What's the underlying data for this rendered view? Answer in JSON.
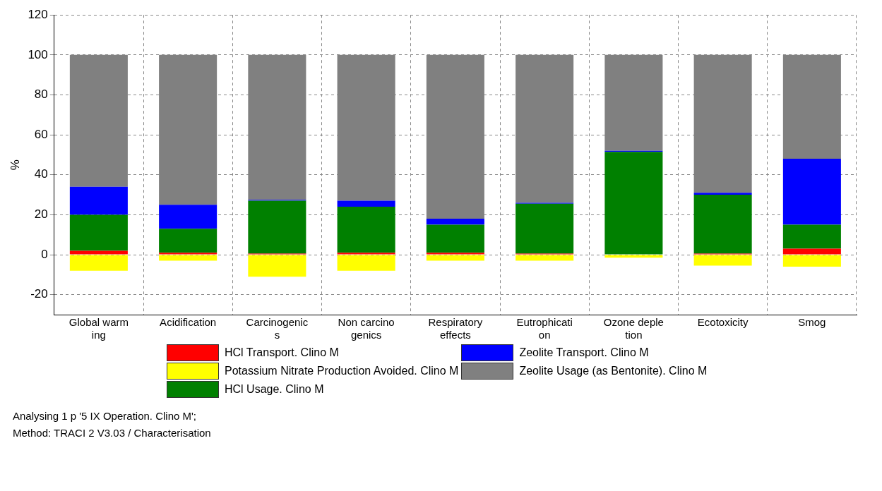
{
  "chart_data": {
    "type": "bar",
    "stacked": true,
    "ylabel": "%",
    "ylim": [
      -30,
      120
    ],
    "yticks": [
      -20,
      0,
      20,
      40,
      60,
      80,
      100,
      120
    ],
    "grid": true,
    "legend": "bottom",
    "categories": [
      "Global warm\ning",
      "Acidification",
      "Carcinogenic\ns",
      "Non carcino\ngenics",
      "Respiratory\neffects",
      "Eutrophicati\non",
      "Ozone deple\ntion",
      "Ecotoxicity",
      "Smog"
    ],
    "series": [
      {
        "name": "HCl Transport. Clino M",
        "color": "#ff0000",
        "values": [
          2,
          1,
          0.5,
          1,
          1,
          0.5,
          null,
          0.5,
          3
        ]
      },
      {
        "name": "Potassium Nitrate Production Avoided. Clino M",
        "color": "#ffff00",
        "values": [
          -8,
          -3,
          -11,
          -8,
          -3,
          -3,
          -1.5,
          -5.5,
          -6
        ]
      },
      {
        "name": "HCl Usage. Clino M",
        "color": "#008000",
        "values": [
          18,
          12,
          26.5,
          23,
          14,
          25,
          51.5,
          29.5,
          12
        ]
      },
      {
        "name": "Zeolite Transport. Clino M",
        "color": "#0000ff",
        "values": [
          14,
          12,
          0.5,
          3,
          3,
          0.5,
          0.5,
          1,
          33
        ]
      },
      {
        "name": "Zeolite Usage (as Bentonite). Clino M",
        "color": "#808080",
        "values": [
          66,
          75,
          72.5,
          73,
          82,
          74,
          48,
          69,
          52
        ]
      }
    ],
    "annotations": [
      "Analysing 1 p '5 IX Operation. Clino M';",
      "Method: TRACI 2 V3.03 / Characterisation"
    ]
  }
}
